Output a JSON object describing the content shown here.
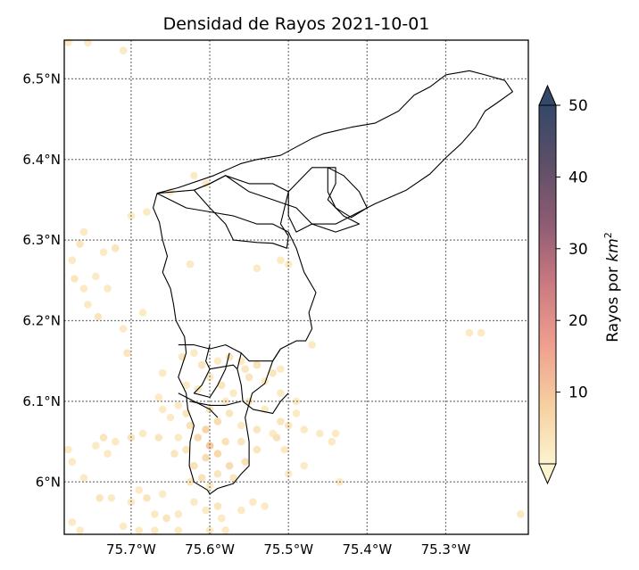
{
  "chart_data": {
    "type": "heatmap",
    "title": "Densidad de Rayos 2021-10-01",
    "xlim": [
      -75.785,
      -75.195
    ],
    "ylim": [
      5.935,
      6.548
    ],
    "grid": true,
    "x_ticks": [
      {
        "value": -75.7,
        "label": "75.7°W"
      },
      {
        "value": -75.6,
        "label": "75.6°W"
      },
      {
        "value": -75.5,
        "label": "75.5°W"
      },
      {
        "value": -75.4,
        "label": "75.4°W"
      },
      {
        "value": -75.3,
        "label": "75.3°W"
      }
    ],
    "y_ticks": [
      {
        "value": 6.0,
        "label": "6°N"
      },
      {
        "value": 6.1,
        "label": "6.1°N"
      },
      {
        "value": 6.2,
        "label": "6.2°N"
      },
      {
        "value": 6.3,
        "label": "6.3°N"
      },
      {
        "value": 6.4,
        "label": "6.4°N"
      },
      {
        "value": 6.5,
        "label": "6.5°N"
      }
    ],
    "colorbar": {
      "label_main": "Rayos por ",
      "label_unit": "km",
      "label_exp": "2",
      "min": 0,
      "max": 50,
      "extend": "both",
      "ticks": [
        {
          "value": 10,
          "label": "10"
        },
        {
          "value": 20,
          "label": "20"
        },
        {
          "value": 30,
          "label": "30"
        },
        {
          "value": 40,
          "label": "40"
        },
        {
          "value": 50,
          "label": "50"
        }
      ],
      "colors": [
        "#fcf3d0",
        "#f6cf9f",
        "#ee9f8e",
        "#cb7a80",
        "#8f5c74",
        "#5e4f68",
        "#344868"
      ]
    },
    "boundaries": [
      [
        [
          -75.667,
          6.358
        ],
        [
          -75.62,
          6.362
        ],
        [
          -75.6,
          6.37
        ],
        [
          -75.58,
          6.38
        ],
        [
          -75.55,
          6.36
        ],
        [
          -75.52,
          6.35
        ],
        [
          -75.49,
          6.34
        ],
        [
          -75.47,
          6.32
        ],
        [
          -75.44,
          6.32
        ],
        [
          -75.39,
          6.345
        ],
        [
          -75.35,
          6.362
        ],
        [
          -75.32,
          6.382
        ],
        [
          -75.3,
          6.402
        ],
        [
          -75.28,
          6.42
        ],
        [
          -75.262,
          6.44
        ],
        [
          -75.25,
          6.46
        ],
        [
          -75.235,
          6.47
        ],
        [
          -75.215,
          6.484
        ],
        [
          -75.225,
          6.498
        ],
        [
          -75.25,
          6.505
        ],
        [
          -75.27,
          6.51
        ],
        [
          -75.3,
          6.505
        ],
        [
          -75.32,
          6.49
        ],
        [
          -75.34,
          6.48
        ],
        [
          -75.36,
          6.46
        ],
        [
          -75.39,
          6.445
        ],
        [
          -75.42,
          6.44
        ],
        [
          -75.455,
          6.432
        ],
        [
          -75.47,
          6.426
        ],
        [
          -75.51,
          6.405
        ],
        [
          -75.54,
          6.4
        ],
        [
          -75.56,
          6.395
        ],
        [
          -75.595,
          6.38
        ],
        [
          -75.64,
          6.365
        ],
        [
          -75.667,
          6.358
        ]
      ],
      [
        [
          -75.667,
          6.358
        ],
        [
          -75.672,
          6.34
        ],
        [
          -75.664,
          6.322
        ],
        [
          -75.66,
          6.3
        ],
        [
          -75.654,
          6.28
        ],
        [
          -75.66,
          6.26
        ],
        [
          -75.65,
          6.24
        ],
        [
          -75.646,
          6.22
        ],
        [
          -75.643,
          6.2
        ],
        [
          -75.632,
          6.18
        ],
        [
          -75.63,
          6.16
        ],
        [
          -75.64,
          6.13
        ],
        [
          -75.63,
          6.11
        ],
        [
          -75.628,
          6.09
        ],
        [
          -75.62,
          6.07
        ],
        [
          -75.625,
          6.05
        ],
        [
          -75.626,
          6.02
        ],
        [
          -75.62,
          6.0
        ],
        [
          -75.603,
          5.99
        ],
        [
          -75.6,
          5.985
        ],
        [
          -75.59,
          5.992
        ],
        [
          -75.58,
          5.995
        ],
        [
          -75.57,
          5.998
        ],
        [
          -75.56,
          6.01
        ],
        [
          -75.55,
          6.02
        ],
        [
          -75.55,
          6.05
        ],
        [
          -75.555,
          6.08
        ],
        [
          -75.546,
          6.11
        ],
        [
          -75.53,
          6.122
        ],
        [
          -75.52,
          6.15
        ],
        [
          -75.51,
          6.165
        ],
        [
          -75.5,
          6.17
        ],
        [
          -75.49,
          6.175
        ],
        [
          -75.478,
          6.175
        ],
        [
          -75.47,
          6.19
        ],
        [
          -75.474,
          6.21
        ],
        [
          -75.465,
          6.235
        ],
        [
          -75.48,
          6.26
        ],
        [
          -75.49,
          6.29
        ],
        [
          -75.5,
          6.31
        ],
        [
          -75.52,
          6.32
        ],
        [
          -75.54,
          6.32
        ],
        [
          -75.57,
          6.33
        ],
        [
          -75.6,
          6.335
        ],
        [
          -75.63,
          6.34
        ],
        [
          -75.667,
          6.358
        ]
      ],
      [
        [
          -75.62,
          6.362
        ],
        [
          -75.6,
          6.34
        ],
        [
          -75.58,
          6.32
        ],
        [
          -75.57,
          6.3
        ],
        [
          -75.54,
          6.297
        ],
        [
          -75.52,
          6.296
        ],
        [
          -75.502,
          6.29
        ],
        [
          -75.5,
          6.305
        ],
        [
          -75.51,
          6.32
        ],
        [
          -75.505,
          6.34
        ],
        [
          -75.5,
          6.36
        ],
        [
          -75.52,
          6.37
        ],
        [
          -75.55,
          6.37
        ],
        [
          -75.58,
          6.38
        ],
        [
          -75.6,
          6.37
        ],
        [
          -75.62,
          6.362
        ]
      ],
      [
        [
          -75.5,
          6.36
        ],
        [
          -75.47,
          6.39
        ],
        [
          -75.44,
          6.39
        ],
        [
          -75.44,
          6.37
        ],
        [
          -75.45,
          6.35
        ],
        [
          -75.43,
          6.33
        ],
        [
          -75.41,
          6.32
        ],
        [
          -75.44,
          6.31
        ],
        [
          -75.47,
          6.32
        ],
        [
          -75.49,
          6.31
        ],
        [
          -75.5,
          6.33
        ],
        [
          -75.5,
          6.36
        ]
      ],
      [
        [
          -75.45,
          6.39
        ],
        [
          -75.43,
          6.38
        ],
        [
          -75.41,
          6.36
        ],
        [
          -75.4,
          6.34
        ],
        [
          -75.42,
          6.328
        ],
        [
          -75.44,
          6.34
        ],
        [
          -75.45,
          6.36
        ],
        [
          -75.45,
          6.39
        ]
      ],
      [
        [
          -75.64,
          6.17
        ],
        [
          -75.62,
          6.17
        ],
        [
          -75.6,
          6.165
        ],
        [
          -75.58,
          6.17
        ],
        [
          -75.56,
          6.16
        ],
        [
          -75.55,
          6.15
        ],
        [
          -75.54,
          6.15
        ],
        [
          -75.52,
          6.15
        ],
        [
          -75.51,
          6.165
        ]
      ],
      [
        [
          -75.6,
          6.17
        ],
        [
          -75.605,
          6.15
        ],
        [
          -75.6,
          6.14
        ],
        [
          -75.61,
          6.12
        ],
        [
          -75.62,
          6.11
        ],
        [
          -75.6,
          6.105
        ],
        [
          -75.59,
          6.12
        ],
        [
          -75.58,
          6.14
        ],
        [
          -75.575,
          6.16
        ]
      ],
      [
        [
          -75.56,
          6.16
        ],
        [
          -75.565,
          6.14
        ],
        [
          -75.56,
          6.12
        ],
        [
          -75.558,
          6.1
        ],
        [
          -75.545,
          6.09
        ],
        [
          -75.52,
          6.085
        ],
        [
          -75.51,
          6.1
        ],
        [
          -75.5,
          6.11
        ]
      ],
      [
        [
          -75.56,
          6.1
        ],
        [
          -75.58,
          6.095
        ],
        [
          -75.6,
          6.095
        ],
        [
          -75.625,
          6.1
        ]
      ],
      [
        [
          -75.6,
          6.14
        ],
        [
          -75.57,
          6.145
        ],
        [
          -75.565,
          6.14
        ]
      ],
      [
        [
          -75.64,
          6.11
        ],
        [
          -75.62,
          6.1
        ],
        [
          -75.6,
          6.09
        ],
        [
          -75.59,
          6.08
        ]
      ]
    ],
    "points": [
      [
        -75.78,
        6.545,
        1
      ],
      [
        -75.755,
        6.545,
        1
      ],
      [
        -75.71,
        6.535,
        1
      ],
      [
        -75.72,
        6.29,
        2
      ],
      [
        -75.76,
        6.31,
        1
      ],
      [
        -75.765,
        6.295,
        2
      ],
      [
        -75.775,
        6.275,
        1
      ],
      [
        -75.772,
        6.252,
        2
      ],
      [
        -75.745,
        6.255,
        1
      ],
      [
        -75.73,
        6.24,
        1
      ],
      [
        -75.755,
        6.22,
        1
      ],
      [
        -75.742,
        6.205,
        2
      ],
      [
        -75.76,
        6.24,
        1
      ],
      [
        -75.735,
        6.285,
        1
      ],
      [
        -75.71,
        6.19,
        1
      ],
      [
        -75.705,
        6.16,
        2
      ],
      [
        -75.685,
        6.21,
        1
      ],
      [
        -75.7,
        6.33,
        1
      ],
      [
        -75.68,
        6.335,
        1
      ],
      [
        -75.65,
        6.36,
        1
      ],
      [
        -75.62,
        6.38,
        1
      ],
      [
        -75.625,
        6.27,
        1
      ],
      [
        -75.605,
        6.37,
        1
      ],
      [
        -75.54,
        6.265,
        1
      ],
      [
        -75.51,
        6.275,
        1
      ],
      [
        -75.5,
        6.27,
        1
      ],
      [
        -75.635,
        6.155,
        2
      ],
      [
        -75.62,
        6.16,
        1
      ],
      [
        -75.61,
        6.145,
        2
      ],
      [
        -75.59,
        6.15,
        1
      ],
      [
        -75.575,
        6.155,
        2
      ],
      [
        -75.56,
        6.15,
        1
      ],
      [
        -75.555,
        6.14,
        2
      ],
      [
        -75.54,
        6.145,
        3
      ],
      [
        -75.52,
        6.135,
        2
      ],
      [
        -75.51,
        6.14,
        1
      ],
      [
        -75.53,
        6.125,
        1
      ],
      [
        -75.55,
        6.13,
        2
      ],
      [
        -75.57,
        6.11,
        1
      ],
      [
        -75.585,
        6.12,
        2
      ],
      [
        -75.6,
        6.13,
        1
      ],
      [
        -75.615,
        6.115,
        1
      ],
      [
        -75.63,
        6.12,
        1
      ],
      [
        -75.55,
        6.1,
        2
      ],
      [
        -75.53,
        6.09,
        1
      ],
      [
        -75.51,
        6.075,
        2
      ],
      [
        -75.52,
        6.06,
        1
      ],
      [
        -75.54,
        6.065,
        2
      ],
      [
        -75.56,
        6.07,
        1
      ],
      [
        -75.575,
        6.085,
        2
      ],
      [
        -75.59,
        6.075,
        4
      ],
      [
        -75.605,
        6.065,
        6
      ],
      [
        -75.6,
        6.045,
        8
      ],
      [
        -75.615,
        6.055,
        5
      ],
      [
        -75.625,
        6.07,
        3
      ],
      [
        -75.63,
        6.04,
        2
      ],
      [
        -75.64,
        6.055,
        1
      ],
      [
        -75.645,
        6.035,
        2
      ],
      [
        -75.62,
        6.02,
        3
      ],
      [
        -75.605,
        6.03,
        4
      ],
      [
        -75.59,
        6.035,
        5
      ],
      [
        -75.58,
        6.05,
        3
      ],
      [
        -75.575,
        6.02,
        4
      ],
      [
        -75.59,
        6.01,
        2
      ],
      [
        -75.61,
        6.005,
        3
      ],
      [
        -75.625,
        6.0,
        2
      ],
      [
        -75.6,
        5.995,
        1
      ],
      [
        -75.57,
        6.005,
        2
      ],
      [
        -75.555,
        6.025,
        3
      ],
      [
        -75.56,
        6.05,
        2
      ],
      [
        -75.54,
        6.04,
        2
      ],
      [
        -75.515,
        6.055,
        3
      ],
      [
        -75.5,
        6.07,
        2
      ],
      [
        -75.49,
        6.085,
        1
      ],
      [
        -75.48,
        6.065,
        1
      ],
      [
        -75.505,
        6.04,
        1
      ],
      [
        -75.46,
        6.06,
        1
      ],
      [
        -75.445,
        6.05,
        1
      ],
      [
        -75.44,
        6.06,
        1
      ],
      [
        -75.435,
        6.0,
        1
      ],
      [
        -75.66,
        6.09,
        1
      ],
      [
        -75.65,
        6.08,
        1
      ],
      [
        -75.665,
        6.055,
        2
      ],
      [
        -75.685,
        6.06,
        1
      ],
      [
        -75.7,
        6.055,
        2
      ],
      [
        -75.72,
        6.05,
        1
      ],
      [
        -75.735,
        6.055,
        2
      ],
      [
        -75.745,
        6.045,
        1
      ],
      [
        -75.73,
        6.035,
        1
      ],
      [
        -75.78,
        6.04,
        1
      ],
      [
        -75.775,
        6.025,
        1
      ],
      [
        -75.76,
        6.005,
        1
      ],
      [
        -75.74,
        5.98,
        2
      ],
      [
        -75.725,
        5.98,
        1
      ],
      [
        -75.7,
        5.975,
        1
      ],
      [
        -75.69,
        5.99,
        1
      ],
      [
        -75.68,
        5.98,
        2
      ],
      [
        -75.67,
        5.96,
        1
      ],
      [
        -75.655,
        5.955,
        2
      ],
      [
        -75.64,
        5.96,
        1
      ],
      [
        -75.62,
        5.975,
        1
      ],
      [
        -75.605,
        5.965,
        1
      ],
      [
        -75.59,
        5.97,
        2
      ],
      [
        -75.585,
        5.955,
        1
      ],
      [
        -75.56,
        5.965,
        1
      ],
      [
        -75.545,
        5.975,
        1
      ],
      [
        -75.53,
        5.97,
        1
      ],
      [
        -75.66,
        5.985,
        1
      ],
      [
        -75.71,
        5.945,
        1
      ],
      [
        -75.69,
        5.94,
        1
      ],
      [
        -75.67,
        5.94,
        1
      ],
      [
        -75.64,
        5.94,
        1
      ],
      [
        -75.6,
        5.94,
        1
      ],
      [
        -75.58,
        5.94,
        1
      ],
      [
        -75.775,
        5.95,
        1
      ],
      [
        -75.765,
        5.94,
        1
      ],
      [
        -75.5,
        6.01,
        1
      ],
      [
        -75.48,
        6.02,
        1
      ],
      [
        -75.27,
        6.185,
        1
      ],
      [
        -75.255,
        6.185,
        1
      ],
      [
        -75.205,
        5.96,
        1
      ],
      [
        -75.47,
        6.17,
        1
      ],
      [
        -75.49,
        6.1,
        1
      ],
      [
        -75.51,
        6.11,
        1
      ],
      [
        -75.66,
        6.135,
        1
      ],
      [
        -75.665,
        6.105,
        1
      ],
      [
        -75.63,
        6.085,
        2
      ],
      [
        -75.64,
        6.095,
        1
      ],
      [
        -75.6,
        6.09,
        2
      ],
      [
        -75.58,
        6.1,
        1
      ]
    ]
  }
}
